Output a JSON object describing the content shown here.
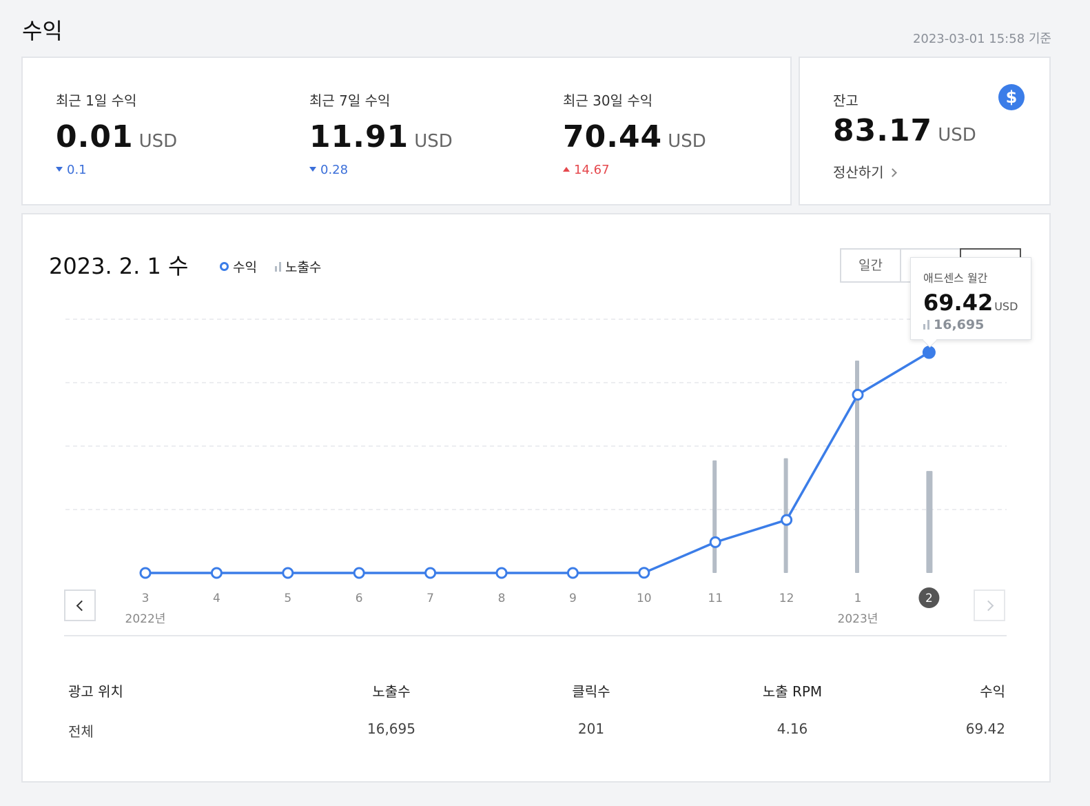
{
  "page": {
    "title": "수익",
    "timestamp": "2023-03-01 15:58 기준"
  },
  "summary": {
    "stats": [
      {
        "label": "최근 1일 수익",
        "value": "0.01",
        "unit": "USD",
        "change": "0.1",
        "direction": "down"
      },
      {
        "label": "최근 7일 수익",
        "value": "11.91",
        "unit": "USD",
        "change": "0.28",
        "direction": "down"
      },
      {
        "label": "최근 30일 수익",
        "value": "70.44",
        "unit": "USD",
        "change": "14.67",
        "direction": "up"
      }
    ]
  },
  "balance": {
    "label": "잔고",
    "value": "83.17",
    "unit": "USD",
    "settle_label": "정산하기",
    "icon": "dollar-icon"
  },
  "chart_panel": {
    "date_label": "2023. 2. 1 수",
    "legend": {
      "revenue": "수익",
      "impressions": "노출수"
    },
    "tabs": [
      "일간",
      "",
      ""
    ],
    "tooltip": {
      "title": "애드센스 월간",
      "value": "69.42",
      "unit": "USD",
      "impressions": "16,695"
    }
  },
  "chart_data": {
    "type": "line",
    "categories": [
      "3",
      "4",
      "5",
      "6",
      "7",
      "8",
      "9",
      "10",
      "11",
      "12",
      "1",
      "2"
    ],
    "year_labels": [
      {
        "index": 0,
        "label": "2022년"
      },
      {
        "index": 10,
        "label": "2023년"
      }
    ],
    "selected_index": 11,
    "series": [
      {
        "name": "수익",
        "kind": "line",
        "color": "#3b7de8",
        "values": [
          0,
          0,
          0,
          0,
          0,
          0,
          0,
          0.1,
          14.5,
          25,
          84,
          104
        ]
      },
      {
        "name": "노출수",
        "kind": "bar",
        "color": "#b4bcc6",
        "values": [
          0,
          0,
          0,
          0,
          0,
          0,
          0,
          0.4,
          53,
          54,
          100,
          48
        ]
      }
    ],
    "grid": true
  },
  "table": {
    "headers": [
      "광고 위치",
      "노출수",
      "클릭수",
      "노출 RPM",
      "수익"
    ],
    "rows": [
      [
        "전체",
        "16,695",
        "201",
        "4.16",
        "69.42"
      ]
    ]
  }
}
